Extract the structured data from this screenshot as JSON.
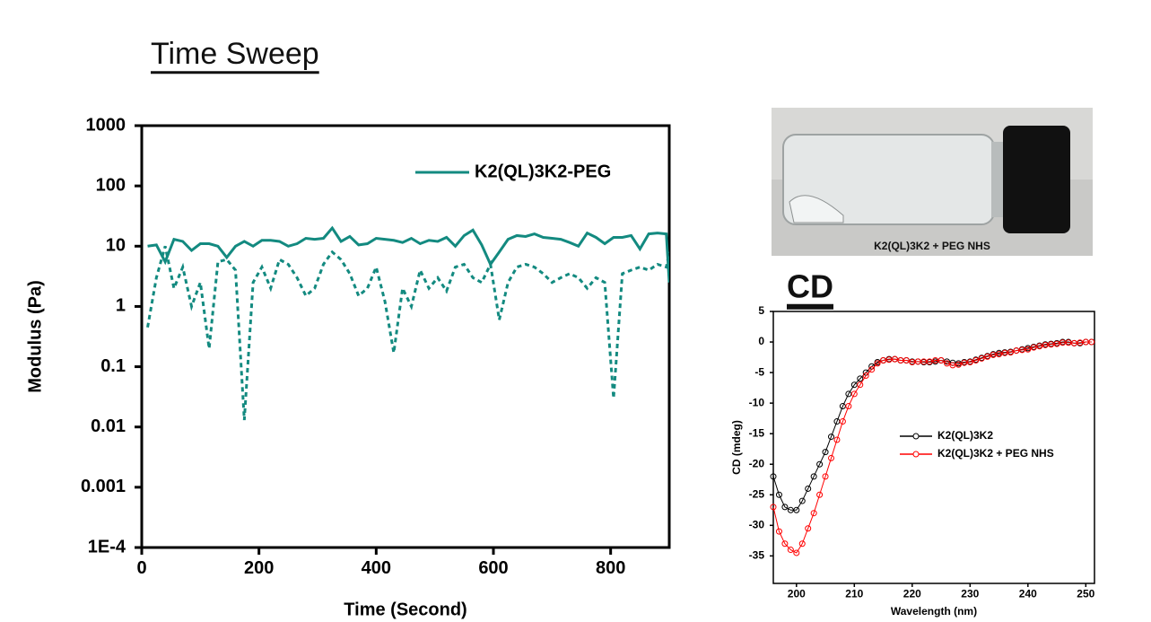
{
  "chart_data": [
    {
      "type": "line",
      "title": "Time Sweep",
      "xlabel": "Time (Second)",
      "ylabel": "Modulus (Pa)",
      "ylog": true,
      "ylim": [
        0.0001,
        1000
      ],
      "yticks": [
        {
          "value": 0.0001,
          "label": "1E-4"
        },
        0.001,
        0.01,
        0.1,
        1,
        10,
        100,
        1000
      ],
      "xlim": [
        0,
        900
      ],
      "xticks": [
        0,
        200,
        400,
        600,
        800
      ],
      "legend": "upper right",
      "x": [
        10,
        25,
        40,
        55,
        70,
        85,
        100,
        115,
        130,
        145,
        160,
        175,
        190,
        205,
        220,
        235,
        250,
        265,
        280,
        295,
        310,
        325,
        340,
        355,
        370,
        385,
        400,
        415,
        430,
        445,
        460,
        475,
        490,
        505,
        520,
        535,
        550,
        565,
        580,
        595,
        610,
        625,
        640,
        655,
        670,
        685,
        700,
        715,
        730,
        745,
        760,
        775,
        790,
        805,
        820,
        835,
        850,
        865,
        880,
        895,
        900
      ],
      "series": [
        {
          "name": "K2(QL)3K2-PEG",
          "color": "#138a80",
          "linestyle": "solid",
          "values": [
            10,
            10.5,
            5.5,
            13,
            12,
            8.5,
            11,
            11,
            10,
            6.5,
            10,
            12,
            10,
            12.5,
            12.5,
            12,
            10,
            11,
            13.5,
            13,
            13.5,
            20,
            12,
            14.5,
            10.5,
            11,
            13.5,
            13,
            12.5,
            11.5,
            13.5,
            11,
            12.5,
            12,
            14,
            10,
            15,
            18.5,
            10.5,
            5,
            8,
            13,
            15,
            14.5,
            16,
            14,
            13.5,
            13,
            11.5,
            10,
            16.5,
            14,
            11,
            14,
            14,
            15,
            9,
            16,
            16.5,
            16,
            2.5
          ]
        },
        {
          "color": "#138a80",
          "linestyle": "dotted",
          "values": [
            0.45,
            3,
            10,
            2,
            4.5,
            1,
            2.5,
            0.2,
            5.5,
            6,
            4,
            0.013,
            2.5,
            4.5,
            2,
            6,
            5,
            3,
            1.5,
            2,
            5,
            8,
            6,
            3.5,
            1.5,
            2,
            4.5,
            1.2,
            0.17,
            2,
            1,
            4,
            2,
            3,
            1.8,
            4.5,
            5,
            3,
            2.5,
            5,
            0.6,
            2.5,
            4.5,
            5,
            4.5,
            3.5,
            2.5,
            3,
            3.5,
            3,
            2,
            3,
            2.5,
            0.03,
            3.5,
            4,
            4.5,
            4,
            5,
            4.5,
            8
          ]
        }
      ]
    },
    {
      "type": "line",
      "title": "CD",
      "xlabel": "Wavelength (nm)",
      "ylabel": "CD (mdeg)",
      "ylim": [
        -39.5,
        5
      ],
      "yticks": [
        5,
        0,
        -5,
        -10,
        -15,
        -20,
        -25,
        -30,
        -35
      ],
      "xlim": [
        196,
        251.5
      ],
      "xticks": [
        200,
        210,
        220,
        230,
        240,
        250
      ],
      "legend": "right",
      "marker": "circle",
      "x": [
        196,
        197,
        198,
        199,
        200,
        201,
        202,
        203,
        204,
        205,
        206,
        207,
        208,
        209,
        210,
        211,
        212,
        213,
        214,
        215,
        216,
        217,
        218,
        219,
        220,
        221,
        222,
        223,
        224,
        225,
        226,
        227,
        228,
        229,
        230,
        231,
        232,
        233,
        234,
        235,
        236,
        237,
        238,
        239,
        240,
        241,
        242,
        243,
        244,
        245,
        246,
        247,
        248,
        249,
        250,
        251
      ],
      "series": [
        {
          "name": "K2(QL)3K2",
          "color": "#000000",
          "linestyle": "solid",
          "values": [
            -22,
            -25,
            -27,
            -27.5,
            -27.5,
            -26,
            -24,
            -22,
            -20,
            -18,
            -15.5,
            -13,
            -10.5,
            -8.5,
            -7,
            -6,
            -5,
            -4,
            -3.3,
            -3,
            -2.8,
            -2.8,
            -3,
            -3,
            -3.2,
            -3.2,
            -3.3,
            -3.3,
            -3.2,
            -3,
            -3.2,
            -3.4,
            -3.5,
            -3.3,
            -3.2,
            -2.9,
            -2.6,
            -2.3,
            -2,
            -1.8,
            -1.7,
            -1.6,
            -1.4,
            -1.2,
            -1,
            -0.8,
            -0.6,
            -0.4,
            -0.3,
            -0.2,
            0,
            0,
            -0.2,
            -0.2,
            0,
            0
          ]
        },
        {
          "name": "K2(QL)3K2 + PEG NHS",
          "color": "#ff0000",
          "linestyle": "solid",
          "values": [
            -27,
            -31,
            -33,
            -34,
            -34.5,
            -33,
            -30.5,
            -28,
            -25,
            -22,
            -19,
            -16,
            -13,
            -10.5,
            -8.5,
            -7,
            -5.5,
            -4.5,
            -3.5,
            -3,
            -2.9,
            -2.8,
            -3,
            -3,
            -3.3,
            -3.2,
            -3.2,
            -3.2,
            -3,
            -3,
            -3.5,
            -3.8,
            -3.7,
            -3.4,
            -3.3,
            -3,
            -2.7,
            -2.4,
            -2.1,
            -2,
            -1.8,
            -1.7,
            -1.4,
            -1.3,
            -1.2,
            -0.9,
            -0.7,
            -0.5,
            -0.4,
            -0.3,
            -0.1,
            -0.1,
            -0.2,
            -0.1,
            0,
            0
          ]
        }
      ]
    }
  ],
  "photo": {
    "caption": "K2(QL)3K2 + PEG NHS"
  }
}
